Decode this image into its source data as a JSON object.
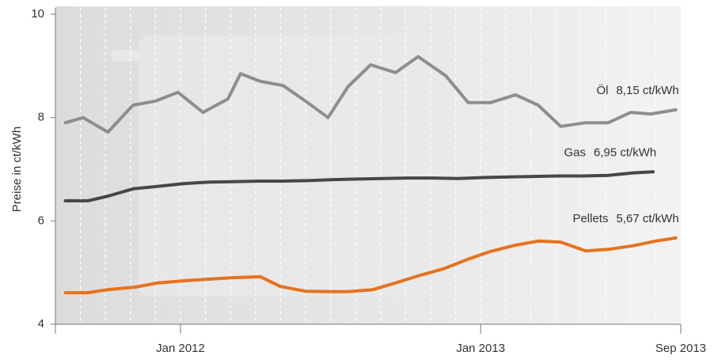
{
  "chart_data": {
    "type": "line",
    "ylabel": "Preise in ct/kWh",
    "xlim": [
      0,
      25
    ],
    "xticks": [
      {
        "value": 5,
        "label": "Jan 2012"
      },
      {
        "value": 17,
        "label": "Jan 2013"
      },
      {
        "value": 25,
        "label": "Sep 2013"
      }
    ],
    "xminorticks": [
      1,
      2,
      3,
      4,
      5,
      6,
      7,
      8,
      9,
      10,
      11,
      12,
      13,
      14,
      15,
      16,
      17,
      18,
      19,
      20,
      21,
      22,
      23,
      24
    ],
    "ylim": [
      4,
      10
    ],
    "yticks": [
      4,
      6,
      8,
      10
    ],
    "series": [
      {
        "name": "Öl",
        "color": "#8e8e8e",
        "x": [
          0.4,
          1.1,
          2.1,
          3.1,
          4.0,
          4.9,
          5.9,
          6.9,
          7.4,
          8.2,
          9.1,
          10.0,
          10.9,
          11.7,
          12.6,
          13.6,
          14.5,
          15.6,
          16.5,
          17.4,
          18.4,
          19.3,
          20.2,
          21.2,
          22.1,
          23.0,
          23.8,
          24.8
        ],
        "values": [
          7.9,
          8.0,
          7.72,
          8.24,
          8.32,
          8.49,
          8.1,
          8.36,
          8.85,
          8.7,
          8.62,
          8.32,
          8.0,
          8.6,
          9.02,
          8.87,
          9.18,
          8.81,
          8.29,
          8.29,
          8.44,
          8.24,
          7.83,
          7.9,
          7.9,
          8.1,
          8.07,
          8.15
        ],
        "value_labels": [
          null,
          null,
          null,
          null,
          null,
          null,
          null,
          null,
          null,
          null,
          null,
          null,
          null,
          null,
          null,
          null,
          null,
          null,
          null,
          null,
          null,
          null,
          null,
          null,
          null,
          null,
          null,
          "8,15 ct/kWh"
        ]
      },
      {
        "name": "Gas",
        "color": "#474747",
        "x": [
          0.4,
          1.3,
          2.1,
          3.1,
          4.1,
          5.1,
          6.1,
          7.1,
          8.1,
          9.1,
          10.1,
          11.1,
          12.1,
          13.1,
          14.1,
          15.1,
          16.1,
          17.1,
          18.1,
          19.1,
          20.1,
          21.1,
          22.1,
          23.1,
          23.9
        ],
        "values": [
          6.39,
          6.39,
          6.48,
          6.62,
          6.67,
          6.72,
          6.75,
          6.76,
          6.77,
          6.77,
          6.78,
          6.8,
          6.81,
          6.82,
          6.83,
          6.83,
          6.82,
          6.84,
          6.85,
          6.86,
          6.87,
          6.87,
          6.88,
          6.93,
          6.95
        ],
        "value_labels": [
          null,
          null,
          null,
          null,
          null,
          null,
          null,
          null,
          null,
          null,
          null,
          null,
          null,
          null,
          null,
          null,
          null,
          null,
          null,
          null,
          null,
          null,
          null,
          null,
          "6,95 ct/kWh"
        ]
      },
      {
        "name": "Pellets",
        "color": "#e8711d",
        "x": [
          0.4,
          1.3,
          2.1,
          3.2,
          4.1,
          5.1,
          6.0,
          7.0,
          8.2,
          9.0,
          10.0,
          10.9,
          11.7,
          12.7,
          13.6,
          14.6,
          15.5,
          16.5,
          17.4,
          18.4,
          19.3,
          20.2,
          21.2,
          22.1,
          23.1,
          24.0,
          24.8
        ],
        "values": [
          4.61,
          4.61,
          4.67,
          4.72,
          4.8,
          4.84,
          4.87,
          4.9,
          4.92,
          4.73,
          4.64,
          4.63,
          4.63,
          4.67,
          4.8,
          4.95,
          5.07,
          5.26,
          5.41,
          5.53,
          5.61,
          5.59,
          5.42,
          5.45,
          5.52,
          5.61,
          5.67
        ],
        "value_labels": [
          null,
          null,
          null,
          null,
          null,
          null,
          null,
          null,
          null,
          null,
          null,
          null,
          null,
          null,
          null,
          null,
          null,
          null,
          null,
          null,
          null,
          null,
          null,
          null,
          null,
          null,
          "5,67 ct/kWh"
        ]
      }
    ]
  }
}
